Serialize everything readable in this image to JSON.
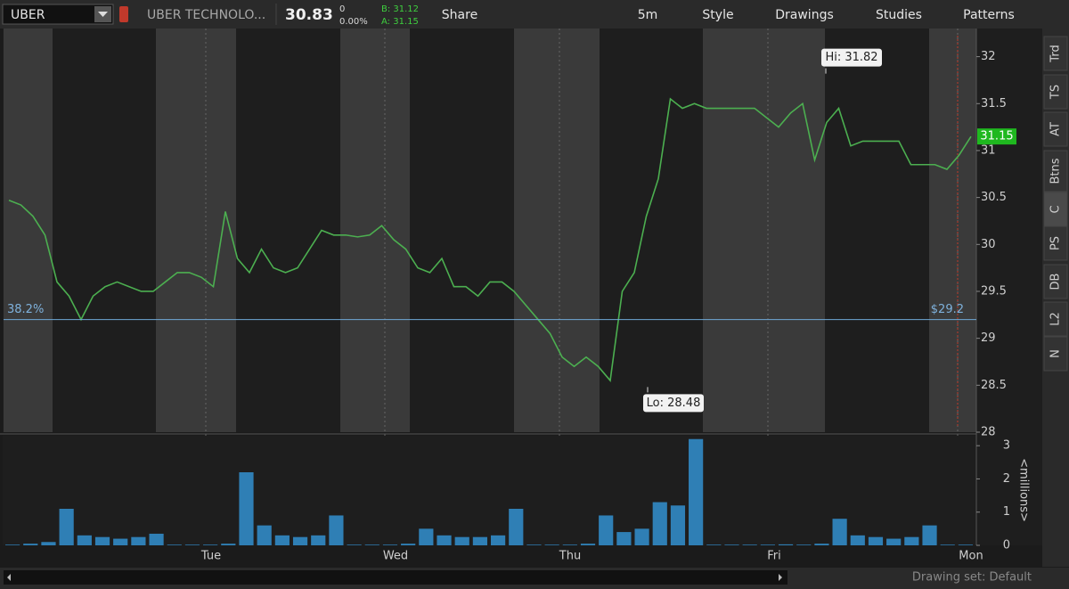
{
  "toolbar": {
    "symbol": "UBER",
    "company": "UBER TECHNOLO...",
    "last": "30.83",
    "change": "0",
    "change_pct": "0.00%",
    "bid": "B: 31.12",
    "ask": "A: 31.15",
    "buttons": [
      "Share",
      "5m",
      "Style",
      "Drawings",
      "Studies",
      "Patterns"
    ]
  },
  "side_tabs": [
    "Trd",
    "TS",
    "AT",
    "Btns",
    "C",
    "PS",
    "DB",
    "L2",
    "N"
  ],
  "price_chart": {
    "type": "line",
    "color": "#4caf50",
    "values": [
      30.47,
      30.42,
      30.3,
      30.1,
      29.6,
      29.45,
      29.2,
      29.45,
      29.55,
      29.6,
      29.55,
      29.5,
      29.5,
      29.6,
      29.7,
      29.7,
      29.65,
      29.55,
      30.35,
      29.85,
      29.7,
      29.95,
      29.75,
      29.7,
      29.75,
      29.95,
      30.15,
      30.1,
      30.1,
      30.08,
      30.1,
      30.2,
      30.05,
      29.95,
      29.75,
      29.7,
      29.85,
      29.55,
      29.55,
      29.45,
      29.6,
      29.6,
      29.5,
      29.35,
      29.2,
      29.05,
      28.8,
      28.7,
      28.8,
      28.7,
      28.55,
      29.5,
      29.7,
      30.3,
      30.7,
      31.55,
      31.45,
      31.5,
      31.45,
      31.45,
      31.45,
      31.45,
      31.45,
      31.35,
      31.25,
      31.4,
      31.5,
      30.9,
      31.3,
      31.45,
      31.05,
      31.1,
      31.1,
      31.1,
      31.1,
      30.85,
      30.85,
      30.85,
      30.8,
      30.95,
      31.15
    ],
    "ylim": [
      28,
      32.3
    ],
    "yticks": [
      28,
      28.5,
      29,
      29.5,
      30,
      30.5,
      31,
      31.5,
      32
    ],
    "last_price": 31.15,
    "fib_level": {
      "value": 29.2,
      "label": "$29.2",
      "ratio": "38.2%"
    },
    "high": {
      "value": 31.82,
      "label": "Hi: 31.82"
    },
    "low": {
      "value": 28.48,
      "label": "Lo: 28.48"
    },
    "days": [
      "Tue",
      "Wed",
      "Thu",
      "Fri",
      "Mon"
    ]
  },
  "volume_chart": {
    "type": "bar",
    "color": "#2f7fb5",
    "values": [
      0.02,
      0.05,
      0.1,
      1.1,
      0.3,
      0.25,
      0.2,
      0.25,
      0.35,
      0.02,
      0.02,
      0.02,
      0.05,
      2.2,
      0.6,
      0.3,
      0.25,
      0.3,
      0.9,
      0.02,
      0.02,
      0.02,
      0.05,
      0.5,
      0.3,
      0.25,
      0.25,
      0.3,
      1.1,
      0.02,
      0.02,
      0.02,
      0.05,
      0.9,
      0.4,
      0.5,
      1.3,
      1.2,
      3.2,
      0.02,
      0.02,
      0.02,
      0.02,
      0.03,
      0.02,
      0.05,
      0.8,
      0.3,
      0.25,
      0.2,
      0.25,
      0.6,
      0.02,
      0.02
    ],
    "ylim": [
      0,
      3.3
    ],
    "yticks": [
      0,
      1,
      2,
      3
    ],
    "axis_label": "<millions>"
  },
  "footer": {
    "drawing_set": "Drawing set: Default"
  }
}
